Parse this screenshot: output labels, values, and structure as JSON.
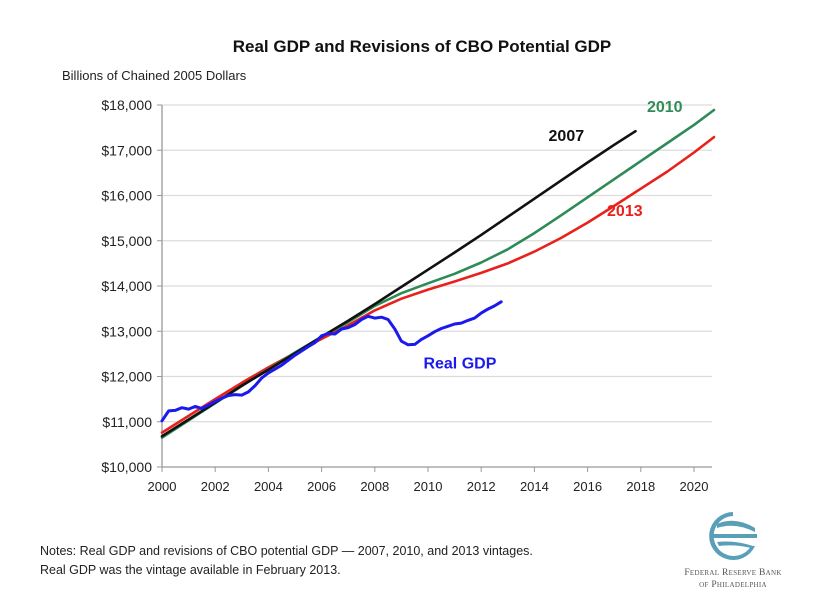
{
  "chart_data": {
    "type": "line",
    "title": "Real GDP and Revisions of CBO Potential GDP",
    "ylabel": "Billions of Chained 2005 Dollars",
    "xlabel": "",
    "xlim": [
      2000,
      2020.75
    ],
    "ylim": [
      10000,
      18000
    ],
    "grid": true,
    "x_ticks": [
      2000,
      2002,
      2004,
      2006,
      2008,
      2010,
      2012,
      2014,
      2016,
      2018,
      2020
    ],
    "x_tick_labels": [
      "2000",
      "2002",
      "2004",
      "2006",
      "2008",
      "2010",
      "2012",
      "2014",
      "2016",
      "2018",
      "2020"
    ],
    "y_ticks": [
      10000,
      11000,
      12000,
      13000,
      14000,
      15000,
      16000,
      17000,
      18000
    ],
    "y_tick_labels": [
      "$10,000",
      "$11,000",
      "$12,000",
      "$13,000",
      "$14,000",
      "$15,000",
      "$16,000",
      "$17,000",
      "$18,000"
    ],
    "legend": "inline-labels",
    "series": [
      {
        "name": "2013",
        "label": "2013",
        "color": "#e8211c",
        "x": [
          2000,
          2001,
          2002,
          2003,
          2004,
          2005,
          2006,
          2007,
          2008,
          2009,
          2010,
          2011,
          2012,
          2013,
          2014,
          2015,
          2016,
          2017,
          2018,
          2019,
          2020,
          2020.75
        ],
        "values": [
          10760,
          11130,
          11500,
          11860,
          12200,
          12520,
          12830,
          13130,
          13460,
          13720,
          13920,
          14100,
          14290,
          14500,
          14760,
          15060,
          15400,
          15770,
          16150,
          16530,
          16950,
          17290
        ]
      },
      {
        "name": "2010",
        "label": "2010",
        "color": "#2e8b57",
        "x": [
          2000,
          2001,
          2002,
          2003,
          2004,
          2005,
          2006,
          2007,
          2008,
          2009,
          2010,
          2011,
          2012,
          2013,
          2014,
          2015,
          2016,
          2017,
          2018,
          2019,
          2020,
          2020.75
        ],
        "values": [
          10650,
          11030,
          11410,
          11790,
          12160,
          12530,
          12880,
          13200,
          13560,
          13840,
          14060,
          14270,
          14520,
          14810,
          15170,
          15560,
          15960,
          16360,
          16760,
          17160,
          17560,
          17890
        ]
      },
      {
        "name": "2007",
        "label": "2007",
        "color": "#111111",
        "x": [
          2000,
          2001,
          2002,
          2003,
          2004,
          2005,
          2006,
          2007,
          2008,
          2009,
          2010,
          2011,
          2012,
          2013,
          2014,
          2015,
          2016,
          2017,
          2017.8
        ],
        "values": [
          10680,
          11050,
          11420,
          11800,
          12150,
          12510,
          12880,
          13230,
          13600,
          13980,
          14360,
          14740,
          15130,
          15530,
          15930,
          16330,
          16730,
          17120,
          17420
        ]
      },
      {
        "name": "Real GDP",
        "label": "Real GDP",
        "color": "#1a1aee",
        "x": [
          2000,
          2000.25,
          2000.5,
          2000.75,
          2001,
          2001.25,
          2001.5,
          2001.75,
          2002,
          2002.25,
          2002.5,
          2002.75,
          2003,
          2003.25,
          2003.5,
          2003.75,
          2004,
          2004.5,
          2005,
          2005.5,
          2005.75,
          2006,
          2006.25,
          2006.5,
          2006.75,
          2007,
          2007.25,
          2007.5,
          2007.75,
          2008,
          2008.25,
          2008.5,
          2008.75,
          2009,
          2009.25,
          2009.5,
          2009.75,
          2010,
          2010.25,
          2010.5,
          2010.75,
          2011,
          2011.25,
          2011.5,
          2011.75,
          2012,
          2012.25,
          2012.5,
          2012.75
        ],
        "values": [
          11020,
          11240,
          11250,
          11310,
          11280,
          11340,
          11290,
          11370,
          11450,
          11520,
          11580,
          11600,
          11590,
          11660,
          11800,
          11970,
          12080,
          12250,
          12470,
          12660,
          12750,
          12900,
          12950,
          12940,
          13050,
          13080,
          13150,
          13260,
          13330,
          13290,
          13310,
          13260,
          13050,
          12780,
          12700,
          12710,
          12820,
          12900,
          12990,
          13060,
          13110,
          13160,
          13180,
          13240,
          13290,
          13400,
          13490,
          13560,
          13650
        ]
      }
    ]
  },
  "notes": {
    "line1": "Notes: Real GDP and revisions of CBO potential GDP — 2007, 2010, and 2013 vintages.",
    "line2": "Real GDP was the vintage available in February 2013."
  },
  "logo": {
    "icon": "federal-reserve-eagle-logo",
    "color": "#5a9fb8",
    "line1": "Federal Reserve Bank",
    "line2": "of Philadelphia"
  }
}
